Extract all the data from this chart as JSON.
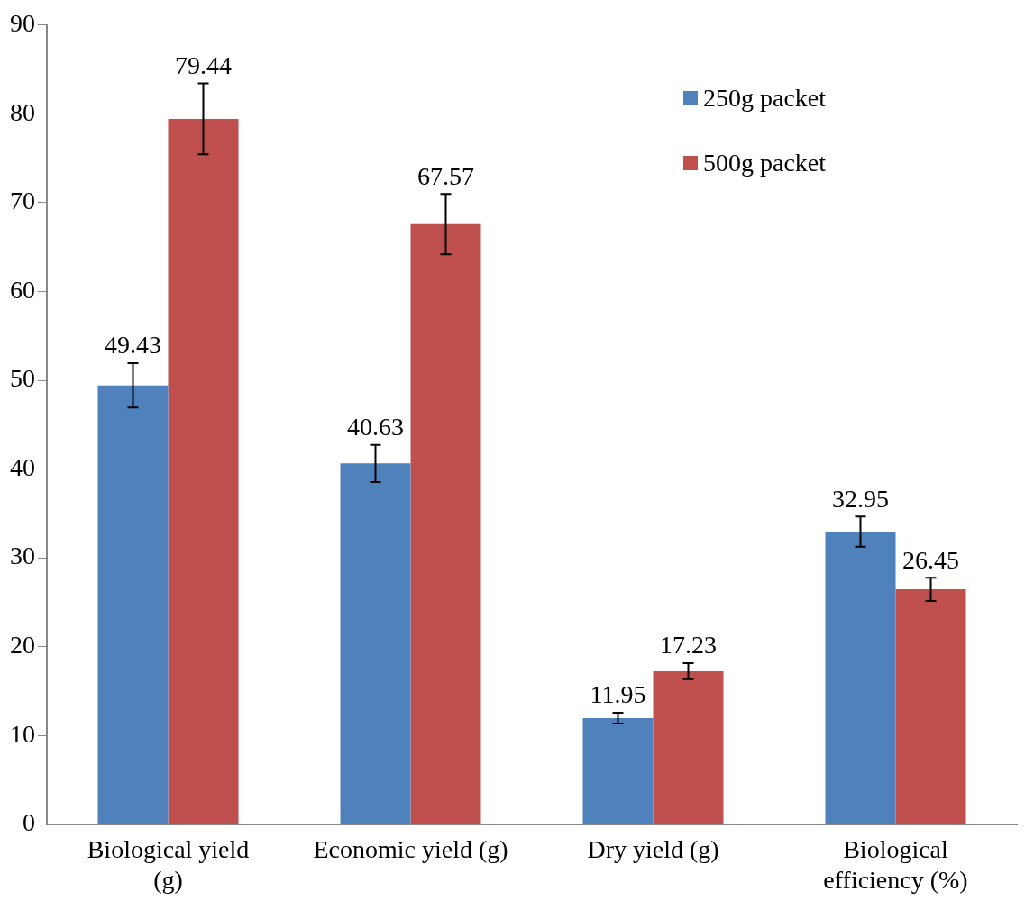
{
  "chart_data": {
    "type": "bar",
    "categories": [
      "Biological yield (g)",
      "Economic yield (g)",
      "Dry yield (g)",
      "Biological efficiency (%)"
    ],
    "series": [
      {
        "name": "250g packet",
        "color": "#4f81bd",
        "values": [
          49.43,
          40.63,
          11.95,
          32.95
        ],
        "errors": [
          2.5,
          2.1,
          0.6,
          1.7
        ]
      },
      {
        "name": "500g packet",
        "color": "#c0504d",
        "values": [
          79.44,
          67.57,
          17.23,
          26.45
        ],
        "errors": [
          4,
          3.4,
          0.9,
          1.3
        ]
      }
    ],
    "ylim": [
      0,
      90
    ],
    "yticks": [
      0,
      10,
      20,
      30,
      40,
      50,
      60,
      70,
      80,
      90
    ],
    "grid": false,
    "legend": "top right",
    "data_labels": true
  }
}
